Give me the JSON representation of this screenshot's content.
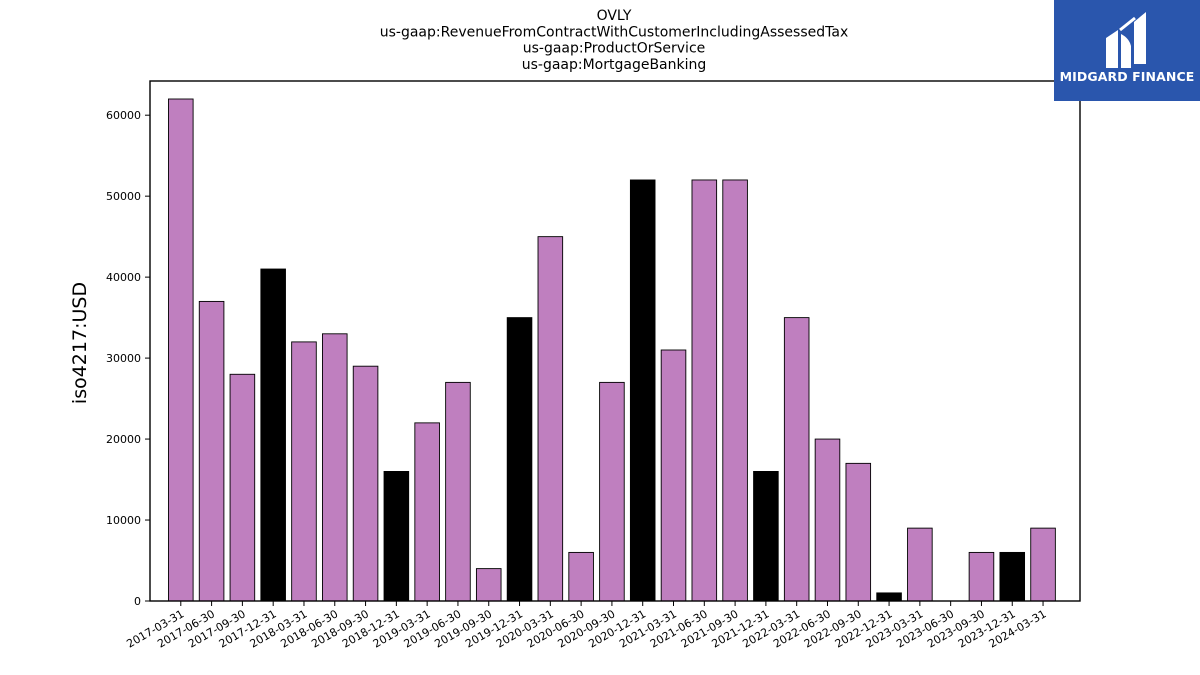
{
  "logo": {
    "text": "MIDGARD FINANCE",
    "color": "#2a56ad"
  },
  "chart_data": {
    "type": "bar",
    "title_lines": [
      "OVLY",
      "us-gaap:RevenueFromContractWithCustomerIncludingAssessedTax",
      "us-gaap:ProductOrService",
      "us-gaap:MortgageBanking"
    ],
    "xlabel": "",
    "ylabel": "iso4217:USD",
    "ylim": [
      0,
      62000
    ],
    "yticks": [
      0,
      10000,
      20000,
      30000,
      40000,
      50000,
      60000
    ],
    "grid": false,
    "colors": {
      "regular": "#bf7fbf",
      "year_end": "#000000"
    },
    "categories": [
      "2017-03-31",
      "2017-06-30",
      "2017-09-30",
      "2017-12-31",
      "2018-03-31",
      "2018-06-30",
      "2018-09-30",
      "2018-12-31",
      "2019-03-31",
      "2019-06-30",
      "2019-09-30",
      "2019-12-31",
      "2020-03-31",
      "2020-06-30",
      "2020-09-30",
      "2020-12-31",
      "2021-03-31",
      "2021-06-30",
      "2021-09-30",
      "2021-12-31",
      "2022-03-31",
      "2022-06-30",
      "2022-09-30",
      "2022-12-31",
      "2023-03-31",
      "2023-06-30",
      "2023-09-30",
      "2023-12-31",
      "2024-03-31"
    ],
    "values": [
      62000,
      37000,
      28000,
      41000,
      32000,
      33000,
      29000,
      16000,
      22000,
      27000,
      4000,
      35000,
      45000,
      6000,
      27000,
      52000,
      31000,
      52000,
      52000,
      16000,
      35000,
      20000,
      17000,
      1000,
      9000,
      0,
      6000,
      6000,
      9000
    ]
  }
}
